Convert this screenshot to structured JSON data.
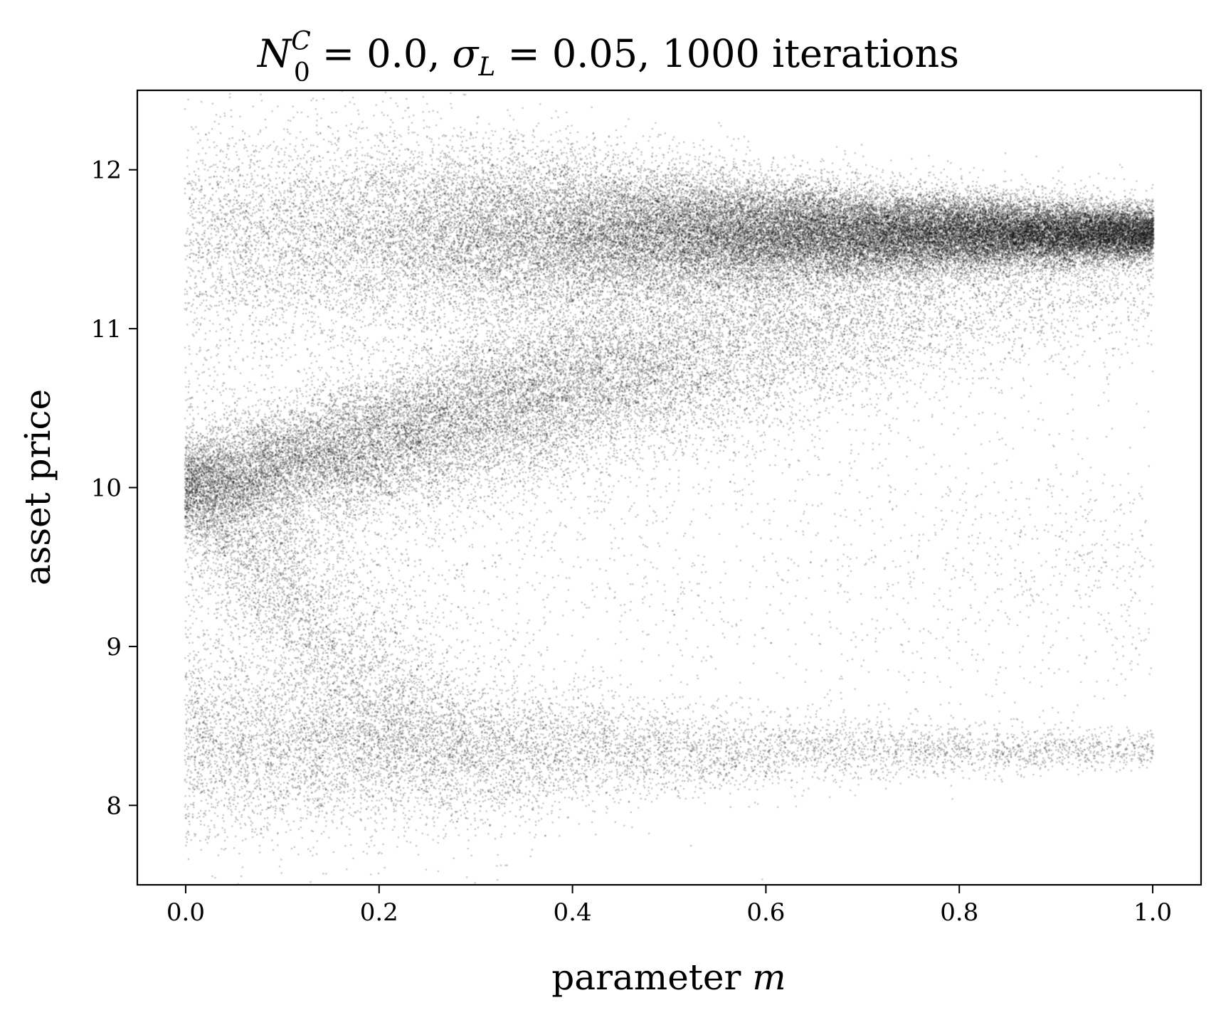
{
  "chart_data": {
    "type": "scatter",
    "title": {
      "symbol_main": "N",
      "symbol_sup": "C",
      "symbol_sub": "0",
      "eq1": " = 0.0,  ",
      "symbol2": "σ",
      "symbol2_sub": "L",
      "eq2": " = 0.05, 1000 iterations"
    },
    "xlabel": {
      "text": "parameter ",
      "var": "m"
    },
    "ylabel": "asset price",
    "xlim": [
      -0.05,
      1.05
    ],
    "ylim": [
      7.5,
      12.5
    ],
    "xticks": [
      0.0,
      0.2,
      0.4,
      0.6,
      0.8,
      1.0
    ],
    "xtick_labels": [
      "0.0",
      "0.2",
      "0.4",
      "0.6",
      "0.8",
      "1.0"
    ],
    "yticks": [
      8,
      9,
      10,
      11,
      12
    ],
    "ytick_labels": [
      "8",
      "9",
      "10",
      "11",
      "12"
    ],
    "grid": false,
    "point_color": "#000000",
    "point_alpha": 0.25,
    "m_steps": 501,
    "points_per_m": 1000,
    "point_clusters": [
      {
        "name": "upper-branch",
        "m": [
          0.0,
          0.2,
          0.4,
          0.6,
          0.8,
          1.0
        ],
        "mean_price": [
          11.6,
          11.6,
          11.6,
          11.6,
          11.6,
          11.6
        ],
        "sd_price": [
          0.35,
          0.32,
          0.25,
          0.17,
          0.12,
          0.08
        ],
        "weight": [
          0.12,
          0.25,
          0.45,
          0.65,
          0.8,
          0.86
        ]
      },
      {
        "name": "rising-branch",
        "m": [
          0.0,
          0.2,
          0.4,
          0.6,
          0.8,
          1.0
        ],
        "mean_price": [
          10.0,
          10.3,
          10.65,
          10.95,
          11.2,
          11.4
        ],
        "sd_price": [
          0.15,
          0.22,
          0.28,
          0.3,
          0.28,
          0.25
        ],
        "weight": [
          0.38,
          0.35,
          0.32,
          0.2,
          0.12,
          0.07
        ]
      },
      {
        "name": "falling-branch",
        "m": [
          0.0,
          0.1,
          0.2,
          0.3,
          0.4
        ],
        "mean_price": [
          10.0,
          9.4,
          8.8,
          8.4,
          8.2
        ],
        "sd_price": [
          0.2,
          0.35,
          0.4,
          0.35,
          0.3
        ],
        "weight": [
          0.2,
          0.2,
          0.12,
          0.04,
          0.0
        ]
      },
      {
        "name": "lower-branch",
        "m": [
          0.0,
          0.2,
          0.4,
          0.6,
          0.8,
          1.0
        ],
        "mean_price": [
          8.4,
          8.35,
          8.35,
          8.35,
          8.35,
          8.35
        ],
        "sd_price": [
          0.3,
          0.25,
          0.18,
          0.12,
          0.08,
          0.06
        ],
        "weight": [
          0.18,
          0.15,
          0.1,
          0.06,
          0.05,
          0.04
        ]
      },
      {
        "name": "sparse-middle",
        "m": [
          0.0,
          0.2,
          0.4,
          0.6,
          0.8,
          1.0
        ],
        "mean_price": [
          9.8,
          9.8,
          9.6,
          9.5,
          9.5,
          9.5
        ],
        "sd_price": [
          0.9,
          0.8,
          0.7,
          0.6,
          0.5,
          0.4
        ],
        "weight": [
          0.12,
          0.05,
          0.03,
          0.02,
          0.03,
          0.03
        ]
      }
    ]
  }
}
